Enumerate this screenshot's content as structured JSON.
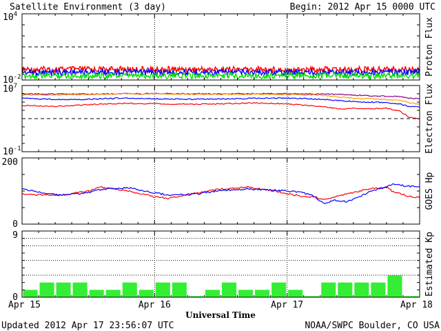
{
  "title": "Satellite Environment (3 day)",
  "begin_label": "Begin:  2012 Apr 15 0000 UTC",
  "updated": "Updated 2012 Apr 17 23:56:07 UTC",
  "credit": "NOAA/SWPC Boulder, CO USA",
  "xlabel": "Universal Time",
  "x_ticks": [
    "Apr 15",
    "Apr 16",
    "Apr 17",
    "Apr 18"
  ],
  "chart_data": [
    {
      "type": "line",
      "panel": "proton",
      "ylabel": "Proton Flux",
      "yscale": "log",
      "ylim": [
        0.01,
        10000
      ],
      "ytick_labels": [
        {
          "base": "10",
          "exp": "4"
        },
        {
          "base": "10",
          "exp": "-2"
        }
      ],
      "threshold": 10,
      "x_days": [
        0,
        0.5,
        1,
        1.5,
        2,
        2.5,
        3
      ],
      "series": [
        {
          "color": "#ff0000",
          "values": [
            0.09,
            0.09,
            0.09,
            0.09,
            0.09,
            0.09,
            0.1
          ]
        },
        {
          "color": "#0000ff",
          "values": [
            0.05,
            0.05,
            0.05,
            0.05,
            0.05,
            0.05,
            0.05
          ]
        },
        {
          "color": "#00dd00",
          "values": [
            0.025,
            0.025,
            0.025,
            0.025,
            0.025,
            0.025,
            0.025
          ]
        }
      ]
    },
    {
      "type": "line",
      "panel": "electron",
      "ylabel": "Electron Flux",
      "yscale": "log",
      "ylim": [
        0.1,
        10000000
      ],
      "ytick_labels": [
        {
          "base": "10",
          "exp": "7"
        },
        {
          "base": "10",
          "exp": "-1"
        }
      ],
      "threshold": 1000,
      "x_days": [
        0,
        0.25,
        0.5,
        0.75,
        1,
        1.25,
        1.5,
        1.75,
        2,
        2.25,
        2.4,
        2.5,
        2.6,
        2.75,
        2.85,
        2.92,
        3
      ],
      "series": [
        {
          "color": "#880088",
          "values": [
            1000000,
            950000,
            900000,
            1000000,
            1050000,
            1000000,
            1000000,
            1050000,
            1000000,
            950000,
            850000,
            700000,
            600000,
            500000,
            450000,
            300000,
            250000
          ]
        },
        {
          "color": "#ff9900",
          "values": [
            700000,
            750000,
            850000,
            950000,
            1000000,
            900000,
            850000,
            900000,
            800000,
            700000,
            400000,
            300000,
            250000,
            200000,
            180000,
            80000,
            60000
          ]
        },
        {
          "color": "#0000ff",
          "values": [
            300000,
            200000,
            220000,
            300000,
            250000,
            220000,
            230000,
            280000,
            300000,
            220000,
            150000,
            120000,
            100000,
            90000,
            60000,
            30000,
            25000
          ]
        },
        {
          "color": "#ff0000",
          "values": [
            40000,
            30000,
            50000,
            70000,
            60000,
            55000,
            60000,
            80000,
            60000,
            30000,
            15000,
            18000,
            15000,
            18000,
            8000,
            1500,
            900
          ]
        }
      ]
    },
    {
      "type": "line",
      "panel": "goes_hp",
      "ylabel": "GOES Hp",
      "ylim": [
        0,
        200
      ],
      "ytick_labels": [
        "200",
        "0"
      ],
      "x_days": [
        0,
        0.1,
        0.3,
        0.5,
        0.6,
        0.8,
        1,
        1.1,
        1.3,
        1.5,
        1.7,
        1.9,
        2.1,
        2.2,
        2.28,
        2.35,
        2.45,
        2.55,
        2.65,
        2.75,
        2.8,
        2.9,
        3
      ],
      "series": [
        {
          "color": "#ff0000",
          "values": [
            92,
            88,
            87,
            100,
            112,
            100,
            82,
            78,
            93,
            106,
            112,
            100,
            85,
            82,
            75,
            80,
            92,
            100,
            108,
            112,
            98,
            86,
            80
          ]
        },
        {
          "color": "#0000ff",
          "values": [
            106,
            98,
            88,
            95,
            105,
            110,
            95,
            88,
            90,
            102,
            106,
            103,
            97,
            85,
            60,
            72,
            68,
            84,
            102,
            112,
            122,
            115,
            112
          ]
        }
      ]
    },
    {
      "type": "bar",
      "panel": "kp",
      "ylabel": "Estimated Kp",
      "ylim": [
        0,
        9
      ],
      "ytick_labels": [
        "9",
        "0"
      ],
      "bar_color": "#33ee33",
      "values": [
        1,
        2,
        2,
        2,
        1,
        1,
        2,
        1,
        2,
        2,
        0,
        1,
        2,
        1,
        1,
        2,
        1,
        0,
        2,
        2,
        2,
        2,
        3,
        0
      ]
    }
  ]
}
